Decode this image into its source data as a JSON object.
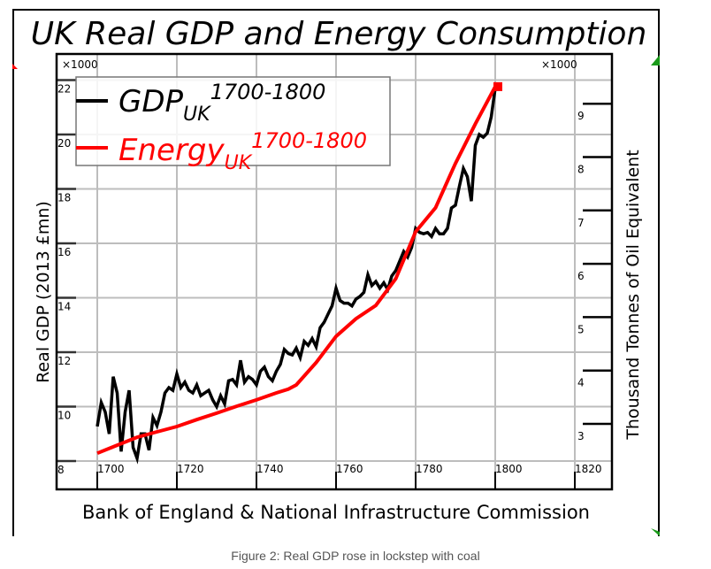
{
  "figure": {
    "caption": "Figure 2: Real GDP rose in lockstep with coal"
  },
  "chart_data": {
    "type": "line",
    "title": "UK Real GDP and Energy Consumption",
    "xlabel": "Bank of England & National Infrastructure Commission",
    "ylabel_left": "Real GDP (2013 £mn)",
    "ylabel_right": "Thousand Tonnes of Oil Equivalent",
    "left_multiplier_label": "×1000",
    "right_multiplier_label": "×1000",
    "xlim": [
      1690,
      1830
    ],
    "ylim_left": [
      8,
      22
    ],
    "ylim_right": [
      2,
      9.5
    ],
    "x_ticks": [
      "1700",
      "1720",
      "1740",
      "1760",
      "1780",
      "1800",
      "1820"
    ],
    "x_tick_values": [
      1700,
      1720,
      1740,
      1760,
      1780,
      1800,
      1820
    ],
    "y_left_ticks": [
      "8",
      "10",
      "12",
      "14",
      "16",
      "18",
      "20",
      "22"
    ],
    "y_left_tick_values": [
      8,
      10,
      12,
      14,
      16,
      18,
      20,
      22
    ],
    "y_right_ticks": [
      "3",
      "4",
      "5",
      "6",
      "7",
      "8",
      "9"
    ],
    "y_right_tick_values": [
      3,
      4,
      5,
      6,
      7,
      8,
      9
    ],
    "grid": true,
    "legend_position": "top-left",
    "legend": [
      {
        "base": "GDP",
        "sub": "UK",
        "sup": "1700-1800",
        "color": "#000000"
      },
      {
        "base": "Energy",
        "sub": "UK",
        "sup": "1700-1800",
        "color": "#ff0000"
      }
    ],
    "series": [
      {
        "name": "GDP UK 1700-1800",
        "axis": "left",
        "color": "#000000",
        "unit": "thousand £mn (2013)",
        "x": [
          1700,
          1701,
          1702,
          1703,
          1704,
          1705,
          1706,
          1707,
          1708,
          1709,
          1710,
          1711,
          1712,
          1713,
          1714,
          1715,
          1716,
          1717,
          1718,
          1719,
          1720,
          1721,
          1722,
          1723,
          1724,
          1725,
          1726,
          1727,
          1728,
          1729,
          1730,
          1731,
          1732,
          1733,
          1734,
          1735,
          1736,
          1737,
          1738,
          1739,
          1740,
          1741,
          1742,
          1743,
          1744,
          1745,
          1746,
          1747,
          1748,
          1749,
          1750,
          1751,
          1752,
          1753,
          1754,
          1755,
          1756,
          1757,
          1758,
          1759,
          1760,
          1761,
          1762,
          1763,
          1764,
          1765,
          1766,
          1767,
          1768,
          1769,
          1770,
          1771,
          1772,
          1773,
          1774,
          1775,
          1776,
          1777,
          1778,
          1779,
          1780,
          1781,
          1782,
          1783,
          1784,
          1785,
          1786,
          1787,
          1788,
          1789,
          1790,
          1791,
          1792,
          1793,
          1794,
          1795,
          1796,
          1797,
          1798,
          1799,
          1800
        ],
        "values": [
          9.27,
          10.15,
          9.8,
          9.0,
          11.1,
          10.5,
          8.35,
          9.8,
          10.6,
          8.5,
          8.1,
          9.0,
          9.0,
          8.4,
          9.6,
          9.3,
          9.8,
          10.5,
          10.7,
          10.6,
          11.2,
          10.7,
          10.9,
          10.6,
          10.5,
          10.8,
          10.4,
          10.5,
          10.6,
          10.25,
          10.0,
          10.4,
          10.1,
          10.95,
          11.0,
          10.8,
          11.7,
          10.9,
          11.1,
          11.0,
          10.8,
          11.3,
          11.45,
          11.1,
          10.95,
          11.3,
          11.55,
          12.1,
          11.95,
          11.9,
          12.15,
          11.8,
          12.4,
          12.25,
          12.5,
          12.2,
          12.9,
          13.1,
          13.4,
          13.7,
          14.35,
          13.9,
          13.8,
          13.8,
          13.7,
          13.95,
          14.05,
          14.2,
          14.85,
          14.45,
          14.6,
          14.35,
          14.55,
          14.3,
          14.8,
          15.0,
          15.35,
          15.7,
          15.5,
          15.85,
          16.55,
          16.4,
          16.35,
          16.4,
          16.25,
          16.55,
          16.35,
          16.35,
          16.55,
          17.3,
          17.4,
          18.1,
          18.75,
          18.45,
          17.55,
          19.6,
          20.0,
          19.9,
          20.05,
          20.65,
          21.7
        ]
      },
      {
        "name": "Energy UK 1700-1800",
        "axis": "right",
        "color": "#ff0000",
        "unit": "thousand tonnes of oil equivalent",
        "x": [
          1700,
          1705,
          1710,
          1715,
          1720,
          1725,
          1730,
          1735,
          1740,
          1745,
          1748,
          1750,
          1755,
          1760,
          1765,
          1770,
          1775,
          1780,
          1785,
          1790,
          1795,
          1800
        ],
        "values": [
          2.45,
          2.6,
          2.75,
          2.85,
          2.95,
          3.08,
          3.2,
          3.33,
          3.45,
          3.58,
          3.65,
          3.73,
          4.15,
          4.64,
          4.97,
          5.22,
          5.72,
          6.6,
          7.05,
          7.88,
          8.62,
          9.32
        ],
        "end_marker": "square"
      }
    ]
  }
}
